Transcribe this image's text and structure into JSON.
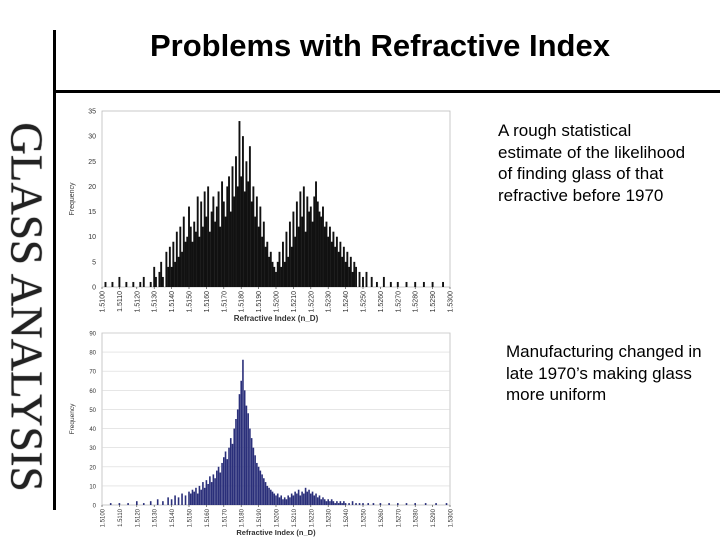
{
  "slide": {
    "title": "Problems with Refractive Index",
    "side_title": "GLASS ANALYSIS",
    "note_top": "A rough statistical estimate of the likelihood of finding glass of that refractive before 1970",
    "note_bottom": "Manufacturing changed in late 1970’s making glass more uniform"
  },
  "chart_data": [
    {
      "type": "bar",
      "xlabel": "Refractive Index (n_D)",
      "ylabel": "Frequency",
      "ylim": [
        0,
        35
      ],
      "yticks": [
        0,
        5,
        10,
        15,
        20,
        25,
        30,
        35
      ],
      "xlim": [
        1.51,
        1.53
      ],
      "xticks": [
        "1.5100",
        "1.5110",
        "1.5120",
        "1.5130",
        "1.5140",
        "1.5150",
        "1.5160",
        "1.5170",
        "1.5180",
        "1.5190",
        "1.5200",
        "1.5210",
        "1.5220",
        "1.5230",
        "1.5240",
        "1.5250",
        "1.5260",
        "1.5270",
        "1.5280",
        "1.5290",
        "1.5300"
      ],
      "bar_color": "#111111",
      "grid": false,
      "x": [
        1.5102,
        1.5106,
        1.511,
        1.5114,
        1.5118,
        1.5122,
        1.5124,
        1.5128,
        1.513,
        1.5131,
        1.5133,
        1.5134,
        1.5135,
        1.5137,
        1.5138,
        1.5139,
        1.514,
        1.5141,
        1.5142,
        1.5143,
        1.5144,
        1.5145,
        1.5146,
        1.5147,
        1.5148,
        1.5149,
        1.515,
        1.5151,
        1.5152,
        1.5153,
        1.5154,
        1.5155,
        1.5156,
        1.5157,
        1.5158,
        1.5159,
        1.516,
        1.5161,
        1.5162,
        1.5163,
        1.5164,
        1.5165,
        1.5166,
        1.5167,
        1.5168,
        1.5169,
        1.517,
        1.5171,
        1.5172,
        1.5173,
        1.5174,
        1.5175,
        1.5176,
        1.5177,
        1.5178,
        1.5179,
        1.518,
        1.5181,
        1.5182,
        1.5183,
        1.5184,
        1.5185,
        1.5186,
        1.5187,
        1.5188,
        1.5189,
        1.519,
        1.5191,
        1.5192,
        1.5193,
        1.5194,
        1.5195,
        1.5196,
        1.5197,
        1.5198,
        1.5199,
        1.52,
        1.5201,
        1.5202,
        1.5203,
        1.5204,
        1.5205,
        1.5206,
        1.5207,
        1.5208,
        1.5209,
        1.521,
        1.5211,
        1.5212,
        1.5213,
        1.5214,
        1.5215,
        1.5216,
        1.5217,
        1.5218,
        1.5219,
        1.522,
        1.5221,
        1.5222,
        1.5223,
        1.5224,
        1.5225,
        1.5226,
        1.5227,
        1.5228,
        1.5229,
        1.523,
        1.5231,
        1.5232,
        1.5233,
        1.5234,
        1.5235,
        1.5236,
        1.5237,
        1.5238,
        1.5239,
        1.524,
        1.5241,
        1.5242,
        1.5243,
        1.5244,
        1.5245,
        1.5246,
        1.5248,
        1.525,
        1.5252,
        1.5255,
        1.5258,
        1.5262,
        1.5266,
        1.527,
        1.5275,
        1.528,
        1.5285,
        1.529,
        1.5296
      ],
      "values": [
        1,
        1,
        2,
        1,
        1,
        1,
        2,
        1,
        4,
        2,
        3,
        5,
        2,
        7,
        4,
        8,
        4,
        9,
        5,
        11,
        6,
        12,
        7,
        14,
        9,
        10,
        16,
        12,
        9,
        13,
        11,
        18,
        10,
        17,
        12,
        19,
        14,
        20,
        11,
        15,
        18,
        13,
        16,
        19,
        12,
        21,
        17,
        14,
        20,
        22,
        15,
        24,
        18,
        26,
        20,
        33,
        22,
        30,
        19,
        25,
        21,
        28,
        17,
        20,
        14,
        18,
        12,
        16,
        10,
        13,
        8,
        9,
        6,
        7,
        5,
        4,
        3,
        5,
        7,
        4,
        9,
        5,
        11,
        6,
        13,
        8,
        15,
        10,
        17,
        12,
        19,
        14,
        20,
        11,
        18,
        15,
        16,
        13,
        18,
        21,
        17,
        15,
        14,
        16,
        12,
        13,
        10,
        12,
        9,
        11,
        8,
        10,
        7,
        9,
        6,
        8,
        5,
        7,
        4,
        6,
        3,
        5,
        4,
        3,
        2,
        3,
        2,
        1,
        2,
        1,
        1,
        1,
        1,
        1,
        1,
        1
      ]
    },
    {
      "type": "bar",
      "xlabel": "Refractive Index (n_D)",
      "ylabel": "Frequency",
      "ylim": [
        0,
        90
      ],
      "yticks": [
        0,
        10,
        20,
        30,
        40,
        50,
        60,
        70,
        80,
        90
      ],
      "xlim": [
        1.51,
        1.53
      ],
      "xticks": [
        "1.5100",
        "1.5110",
        "1.5120",
        "1.5130",
        "1.5140",
        "1.5150",
        "1.5160",
        "1.5170",
        "1.5180",
        "1.5190",
        "1.5200",
        "1.5210",
        "1.5220",
        "1.5230",
        "1.5240",
        "1.5250",
        "1.5260",
        "1.5270",
        "1.5280",
        "1.5290",
        "1.5300"
      ],
      "bar_color": "#2a2f7a",
      "grid": true,
      "x": [
        1.5105,
        1.511,
        1.5115,
        1.512,
        1.5124,
        1.5128,
        1.5132,
        1.5135,
        1.5138,
        1.514,
        1.5142,
        1.5144,
        1.5146,
        1.5148,
        1.515,
        1.5151,
        1.5152,
        1.5153,
        1.5154,
        1.5155,
        1.5156,
        1.5157,
        1.5158,
        1.5159,
        1.516,
        1.5161,
        1.5162,
        1.5163,
        1.5164,
        1.5165,
        1.5166,
        1.5167,
        1.5168,
        1.5169,
        1.517,
        1.5171,
        1.5172,
        1.5173,
        1.5174,
        1.5175,
        1.5176,
        1.5177,
        1.5178,
        1.5179,
        1.518,
        1.5181,
        1.5182,
        1.5183,
        1.5184,
        1.5185,
        1.5186,
        1.5187,
        1.5188,
        1.5189,
        1.519,
        1.5191,
        1.5192,
        1.5193,
        1.5194,
        1.5195,
        1.5196,
        1.5197,
        1.5198,
        1.5199,
        1.52,
        1.5201,
        1.5202,
        1.5203,
        1.5204,
        1.5205,
        1.5206,
        1.5207,
        1.5208,
        1.5209,
        1.521,
        1.5211,
        1.5212,
        1.5213,
        1.5214,
        1.5215,
        1.5216,
        1.5217,
        1.5218,
        1.5219,
        1.522,
        1.5221,
        1.5222,
        1.5223,
        1.5224,
        1.5225,
        1.5226,
        1.5227,
        1.5228,
        1.5229,
        1.523,
        1.5231,
        1.5232,
        1.5233,
        1.5234,
        1.5235,
        1.5236,
        1.5237,
        1.5238,
        1.5239,
        1.524,
        1.5242,
        1.5244,
        1.5246,
        1.5248,
        1.525,
        1.5253,
        1.5256,
        1.526,
        1.5265,
        1.527,
        1.5275,
        1.528,
        1.5286,
        1.5292,
        1.5298
      ],
      "values": [
        1,
        1,
        1,
        2,
        1,
        2,
        3,
        2,
        4,
        3,
        5,
        4,
        6,
        5,
        7,
        6,
        8,
        7,
        9,
        6,
        10,
        8,
        12,
        9,
        13,
        11,
        15,
        12,
        16,
        14,
        18,
        20,
        17,
        22,
        25,
        28,
        24,
        30,
        35,
        32,
        40,
        45,
        50,
        58,
        65,
        76,
        60,
        52,
        48,
        40,
        35,
        30,
        26,
        22,
        20,
        18,
        16,
        14,
        12,
        10,
        9,
        8,
        7,
        6,
        5,
        6,
        4,
        5,
        3,
        4,
        3,
        5,
        4,
        6,
        5,
        7,
        6,
        8,
        5,
        7,
        6,
        9,
        7,
        8,
        6,
        7,
        5,
        6,
        4,
        5,
        3,
        4,
        3,
        2,
        3,
        2,
        3,
        2,
        1,
        2,
        1,
        2,
        1,
        2,
        1,
        1,
        2,
        1,
        1,
        1,
        1,
        1,
        1,
        1,
        1,
        1,
        1,
        1,
        1,
        1
      ]
    }
  ]
}
